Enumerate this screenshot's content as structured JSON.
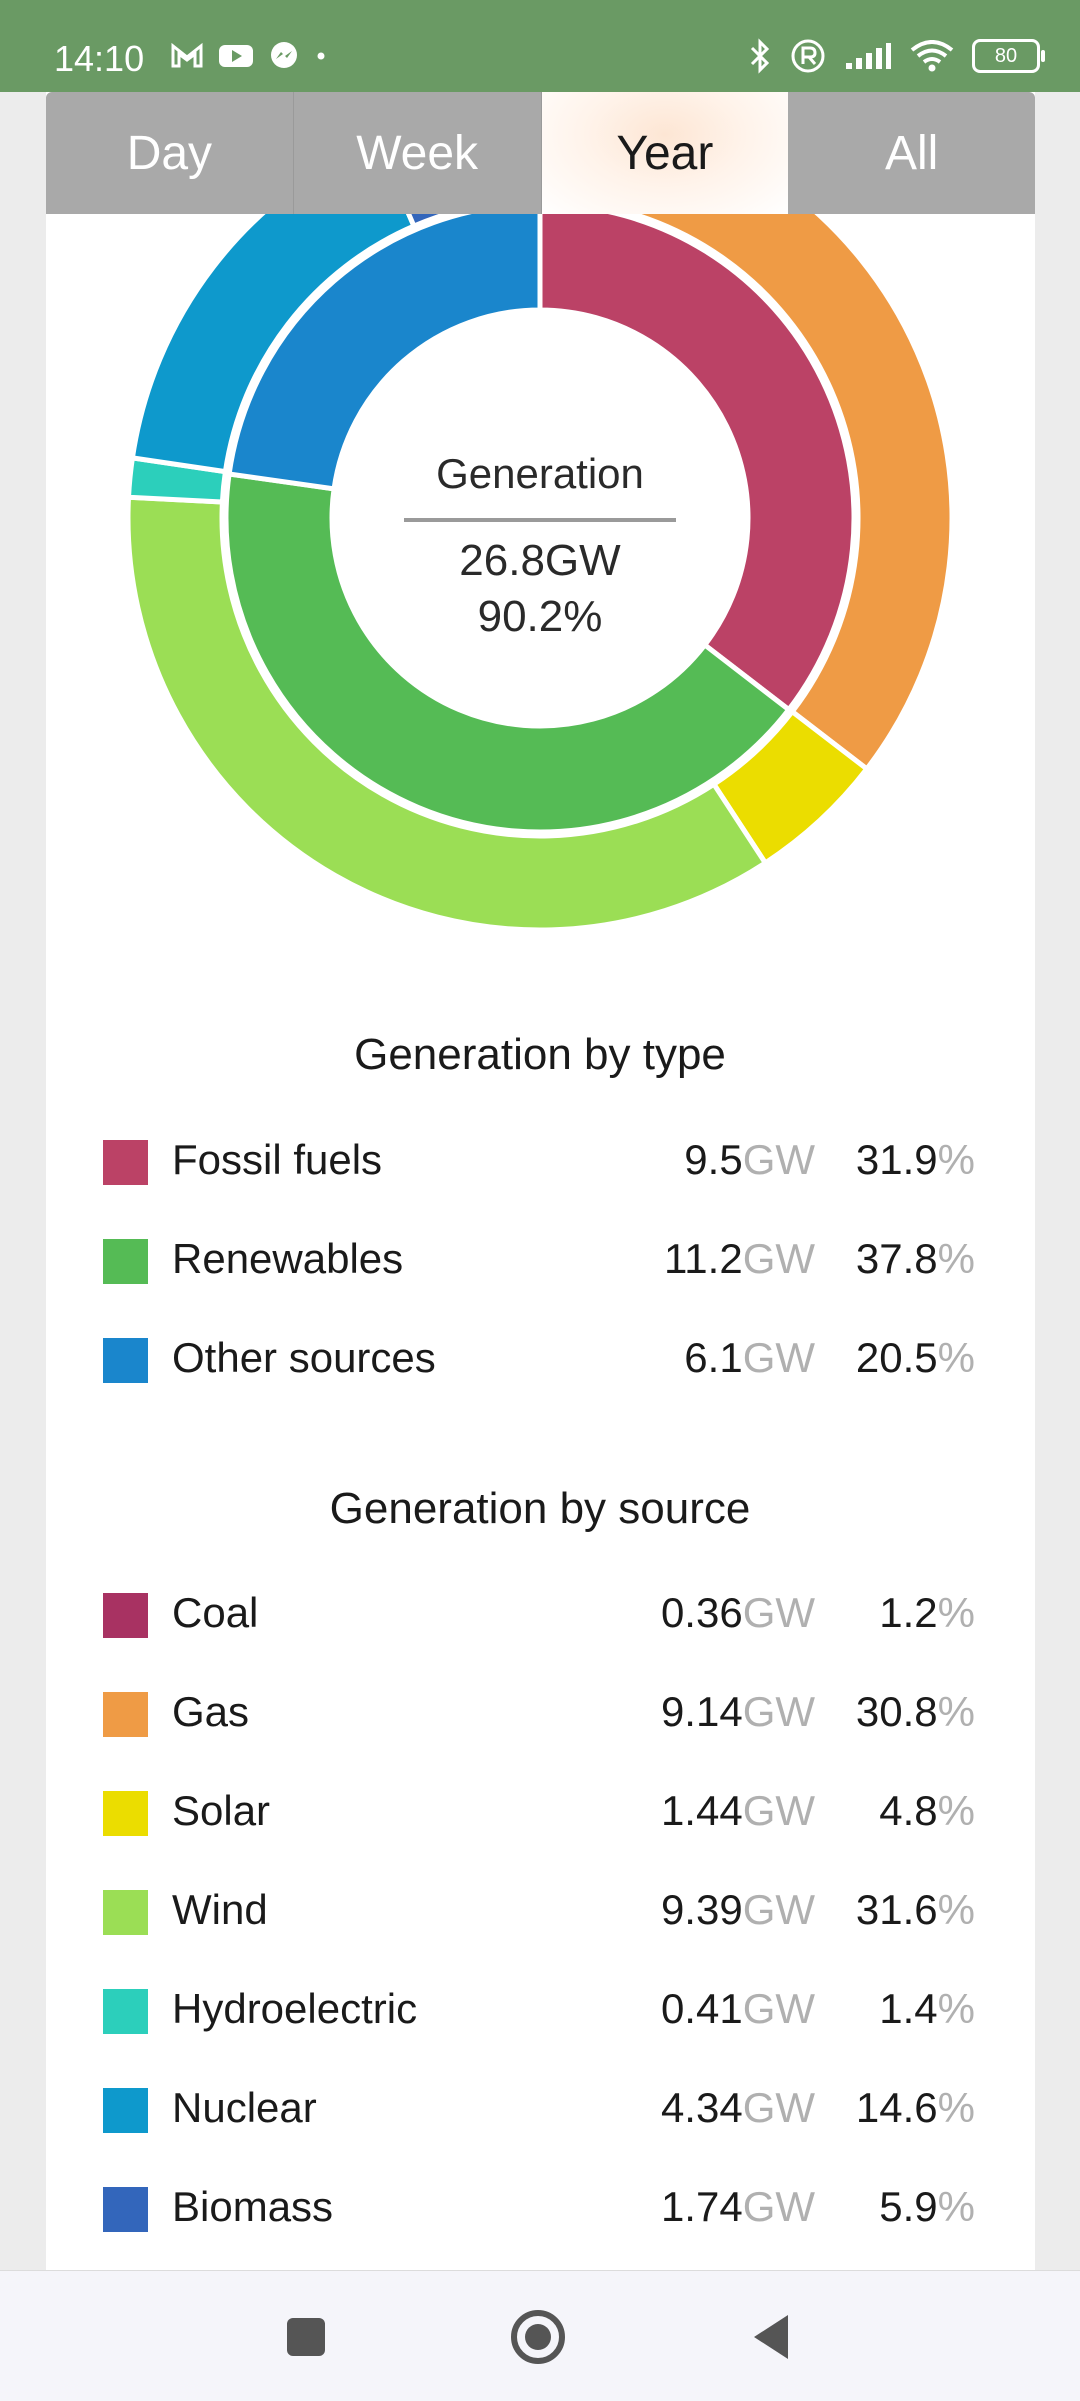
{
  "status_bar": {
    "time": "14:10",
    "notification_icons": [
      "gmail-icon",
      "youtube-icon",
      "messenger-icon",
      "dot-icon"
    ],
    "system_icons": [
      "bluetooth-icon",
      "registered-icon",
      "signal-icon",
      "wifi-icon"
    ],
    "battery": "80"
  },
  "tabs": [
    {
      "label": "Day",
      "active": false
    },
    {
      "label": "Week",
      "active": false
    },
    {
      "label": "Year",
      "active": true
    },
    {
      "label": "All",
      "active": false
    }
  ],
  "center": {
    "title": "Generation",
    "gw": "26.8GW",
    "percent": "90.2%"
  },
  "unit_gw": "GW",
  "unit_pct": "%",
  "by_type": {
    "title": "Generation by type",
    "items": [
      {
        "label": "Fossil fuels",
        "gw": "9.5",
        "pct": "31.9",
        "color": "#bb4266"
      },
      {
        "label": "Renewables",
        "gw": "11.2",
        "pct": "37.8",
        "color": "#55bb55"
      },
      {
        "label": "Other sources",
        "gw": "6.1",
        "pct": "20.5",
        "color": "#1a86cc"
      }
    ]
  },
  "by_source": {
    "title": "Generation by source",
    "items": [
      {
        "label": "Coal",
        "gw": "0.36",
        "pct": "1.2",
        "color": "#a83262"
      },
      {
        "label": "Gas",
        "gw": "9.14",
        "pct": "30.8",
        "color": "#ef9b45"
      },
      {
        "label": "Solar",
        "gw": "1.44",
        "pct": "4.8",
        "color": "#ebdd00"
      },
      {
        "label": "Wind",
        "gw": "9.39",
        "pct": "31.6",
        "color": "#9bde55"
      },
      {
        "label": "Hydroelectric",
        "gw": "0.41",
        "pct": "1.4",
        "color": "#2ccfbb"
      },
      {
        "label": "Nuclear",
        "gw": "4.34",
        "pct": "14.6",
        "color": "#0e99cc"
      },
      {
        "label": "Biomass",
        "gw": "1.74",
        "pct": "5.9",
        "color": "#3366bb"
      }
    ]
  },
  "chart_data": {
    "type": "pie",
    "inner_ring": {
      "categories": [
        "Fossil fuels",
        "Renewables",
        "Other sources"
      ],
      "values": [
        9.5,
        11.2,
        6.1
      ]
    },
    "outer_ring": {
      "categories": [
        "Coal",
        "Gas",
        "Solar",
        "Wind",
        "Hydroelectric",
        "Nuclear",
        "Biomass"
      ],
      "values": [
        0.36,
        9.14,
        1.44,
        9.39,
        0.41,
        4.34,
        1.74
      ]
    }
  },
  "nav": {
    "buttons": [
      "recents-button",
      "home-button",
      "back-button"
    ]
  }
}
